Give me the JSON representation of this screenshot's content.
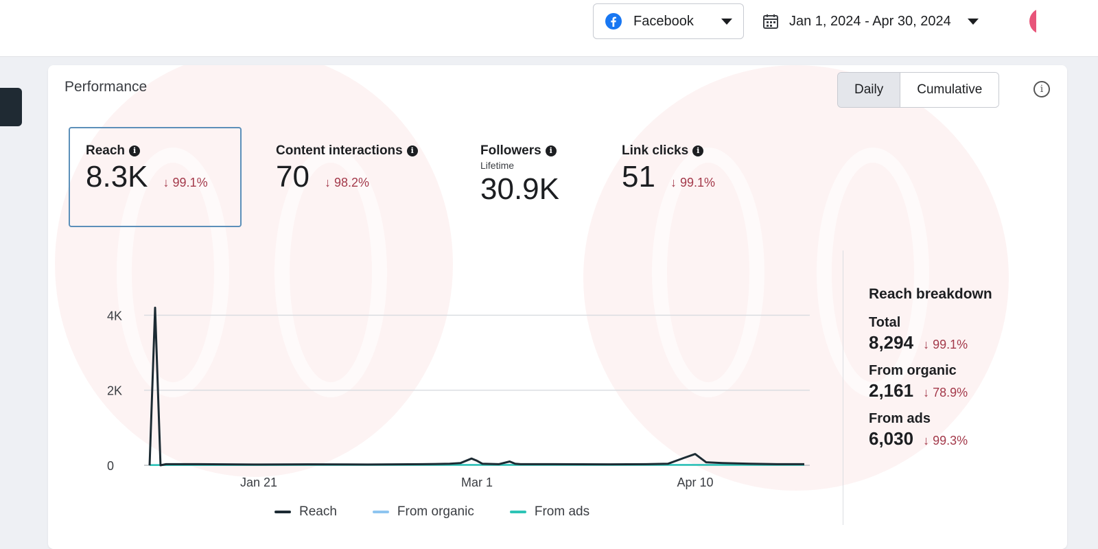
{
  "header": {
    "platform": "Facebook",
    "date_range": "Jan 1, 2024 - Apr 30, 2024"
  },
  "colors": {
    "negative": "#a3394a",
    "reach": "#1c2b33",
    "organic": "#8ec5f0",
    "ads": "#2ec4b6"
  },
  "performance": {
    "title": "Performance",
    "view_options": [
      "Daily",
      "Cumulative"
    ],
    "active_view": "Daily",
    "metrics": [
      {
        "label": "Reach",
        "value": "8.3K",
        "change": "99.1%",
        "subtitle": ""
      },
      {
        "label": "Content interactions",
        "value": "70",
        "change": "98.2%",
        "subtitle": ""
      },
      {
        "label": "Followers",
        "value": "30.9K",
        "change": "",
        "subtitle": "Lifetime"
      },
      {
        "label": "Link clicks",
        "value": "51",
        "change": "99.1%",
        "subtitle": ""
      }
    ]
  },
  "breakdown": {
    "title": "Reach breakdown",
    "items": [
      {
        "label": "Total",
        "value": "8,294",
        "change": "99.1%"
      },
      {
        "label": "From organic",
        "value": "2,161",
        "change": "78.9%"
      },
      {
        "label": "From ads",
        "value": "6,030",
        "change": "99.3%"
      }
    ]
  },
  "chart_data": {
    "type": "line",
    "x_ticks": [
      "Jan 21",
      "Mar 1",
      "Apr 10"
    ],
    "y_ticks": [
      "4K",
      "2K",
      "0"
    ],
    "ylim": [
      0,
      4000
    ],
    "grid": true,
    "legend_position": "bottom",
    "series": [
      {
        "name": "Reach",
        "x": [
          "2024-01-01",
          "2024-01-02",
          "2024-01-03",
          "2024-01-04",
          "2024-01-10",
          "2024-01-20",
          "2024-01-30",
          "2024-02-10",
          "2024-02-20",
          "2024-02-25",
          "2024-02-27",
          "2024-02-29",
          "2024-03-01",
          "2024-03-02",
          "2024-03-05",
          "2024-03-07",
          "2024-03-08",
          "2024-03-09",
          "2024-03-15",
          "2024-03-25",
          "2024-04-01",
          "2024-04-05",
          "2024-04-08",
          "2024-04-10",
          "2024-04-12",
          "2024-04-15",
          "2024-04-20",
          "2024-04-25",
          "2024-04-30"
        ],
        "values": [
          0,
          4200,
          0,
          30,
          30,
          20,
          25,
          20,
          30,
          40,
          60,
          180,
          120,
          40,
          30,
          100,
          40,
          30,
          30,
          25,
          30,
          40,
          200,
          300,
          80,
          60,
          40,
          30,
          30
        ]
      },
      {
        "name": "From organic",
        "x": [
          "2024-01-01",
          "2024-02-01",
          "2024-03-01",
          "2024-04-01",
          "2024-04-30"
        ],
        "values": [
          10,
          15,
          15,
          15,
          15
        ]
      },
      {
        "name": "From ads",
        "x": [
          "2024-01-01",
          "2024-02-01",
          "2024-03-01",
          "2024-04-01",
          "2024-04-30"
        ],
        "values": [
          5,
          10,
          10,
          10,
          10
        ]
      }
    ]
  }
}
